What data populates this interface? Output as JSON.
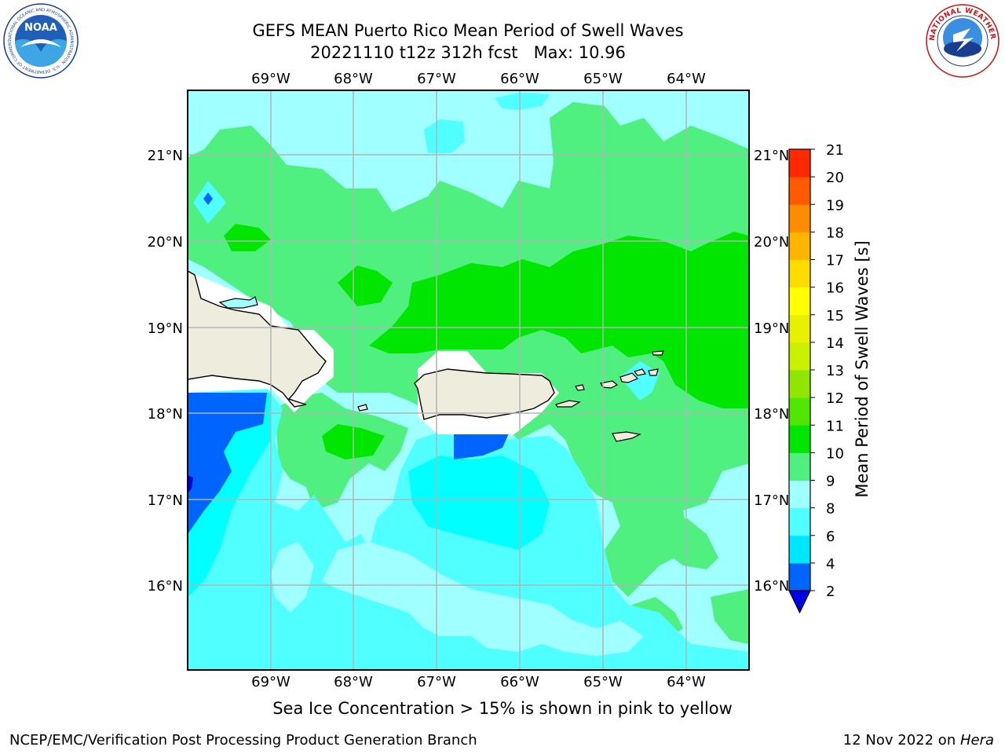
{
  "header": {
    "title_line1": "GEFS MEAN Puerto Rico Mean Period of Swell Waves",
    "title_line2": "20221110 t12z 312h fcst   Max: 10.96"
  },
  "logos": {
    "left": {
      "name": "noaa-logo",
      "text": "NOAA",
      "ring_text": "NATIONAL OCEANIC AND ATMOSPHERIC ADMINISTRATION · U.S. DEPARTMENT OF COMMERCE"
    },
    "right": {
      "name": "nws-logo",
      "ring_text": "NATIONAL WEATHER SERVICE"
    }
  },
  "map": {
    "lon_labels": [
      "69°W",
      "68°W",
      "67°W",
      "66°W",
      "65°W",
      "64°W"
    ],
    "lat_labels": [
      "21°N",
      "20°N",
      "19°N",
      "18°N",
      "17°N",
      "16°N"
    ],
    "colors": {
      "land": "#eeecdc",
      "grid": "#b4b4b4",
      "coast": "#000000",
      "nodata": "#ffffff"
    }
  },
  "colorbar": {
    "label": "Mean Period of Swell Waves [s]",
    "ticks": [
      "2",
      "4",
      "6",
      "8",
      "9",
      "10",
      "11",
      "12",
      "13",
      "14",
      "15",
      "16",
      "17",
      "18",
      "19",
      "20",
      "21"
    ],
    "colors": [
      "#0064ff",
      "#00e6ff",
      "#50ffff",
      "#a0ffff",
      "#50f080",
      "#00e600",
      "#50e600",
      "#90e600",
      "#c8f000",
      "#e6f000",
      "#ffff00",
      "#ffdc00",
      "#ffb400",
      "#ff8c00",
      "#ff5a00",
      "#ff2800"
    ],
    "under_color": "#0000e6"
  },
  "footer": {
    "caption": "Sea Ice Concentration > 15% is shown in pink to yellow",
    "left": "NCEP/EMC/Verification Post Processing Product Generation Branch",
    "date": "12 Nov 2022 on ",
    "host": "Hera"
  }
}
